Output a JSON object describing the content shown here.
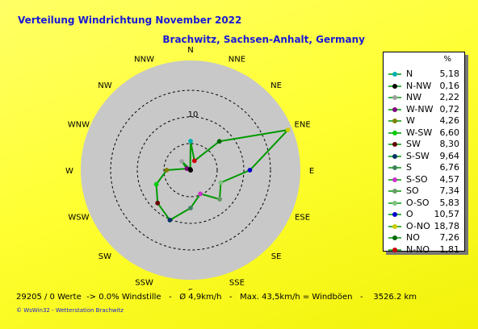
{
  "header": {
    "title": "Verteilung Windrichtung   November 2022",
    "location": "Brachwitz, Sachsen-Anhalt, Germany"
  },
  "chart_data": {
    "type": "radar",
    "categories": [
      "N",
      "NNE",
      "NE",
      "ENE",
      "E",
      "ESE",
      "SE",
      "SSE",
      "S",
      "SSW",
      "SW",
      "WSW",
      "W",
      "WNW",
      "NW",
      "NNW"
    ],
    "values": [
      5.18,
      1.81,
      7.26,
      18.78,
      10.57,
      5.83,
      7.34,
      4.57,
      6.76,
      9.64,
      8.3,
      6.6,
      4.26,
      0.72,
      2.22,
      0.16
    ],
    "point_colors": [
      "#00b0b0",
      "#cc0000",
      "#006600",
      "#cccc00",
      "#0000cc",
      "#80c080",
      "#669966",
      "#cc33cc",
      "#408060",
      "#003366",
      "#660000",
      "#00cc00",
      "#808000",
      "#800080",
      "#a0a0a0",
      "#000000"
    ],
    "ring_labels": [
      "10"
    ],
    "ring_max": 20,
    "line_color": "#009900",
    "disc_color": "#c8c8c8"
  },
  "legend": {
    "header": "%",
    "items": [
      {
        "name": "N",
        "value": "5,18",
        "color": "#00b0b0"
      },
      {
        "name": "N-NW",
        "value": "0,16",
        "color": "#000000"
      },
      {
        "name": "NW",
        "value": "2,22",
        "color": "#a0a0a0"
      },
      {
        "name": "W-NW",
        "value": "0,72",
        "color": "#800080"
      },
      {
        "name": "W",
        "value": "4,26",
        "color": "#808000"
      },
      {
        "name": "W-SW",
        "value": "6,60",
        "color": "#00cc00"
      },
      {
        "name": "SW",
        "value": "8,30",
        "color": "#660000"
      },
      {
        "name": "S-SW",
        "value": "9,64",
        "color": "#003366"
      },
      {
        "name": "S",
        "value": "6,76",
        "color": "#408060"
      },
      {
        "name": "S-SO",
        "value": "4,57",
        "color": "#cc33cc"
      },
      {
        "name": "SO",
        "value": "7,34",
        "color": "#669966"
      },
      {
        "name": "O-SO",
        "value": "5,83",
        "color": "#80c080"
      },
      {
        "name": "O",
        "value": "10,57",
        "color": "#0000cc"
      },
      {
        "name": "O-NO",
        "value": "18,78",
        "color": "#cccc00"
      },
      {
        "name": "NO",
        "value": "7,26",
        "color": "#006600"
      },
      {
        "name": "N-NO",
        "value": "1,81",
        "color": "#cc0000"
      }
    ]
  },
  "footer": {
    "stats": "29205 / 0 Werte  -> 0.0% Windstille   -   Ø 4,9km/h   -   Max. 43,5km/h = Windböen   -    3526.2 km",
    "copyright": "© WsWin32  -  Wetterstation Brachwitz"
  }
}
